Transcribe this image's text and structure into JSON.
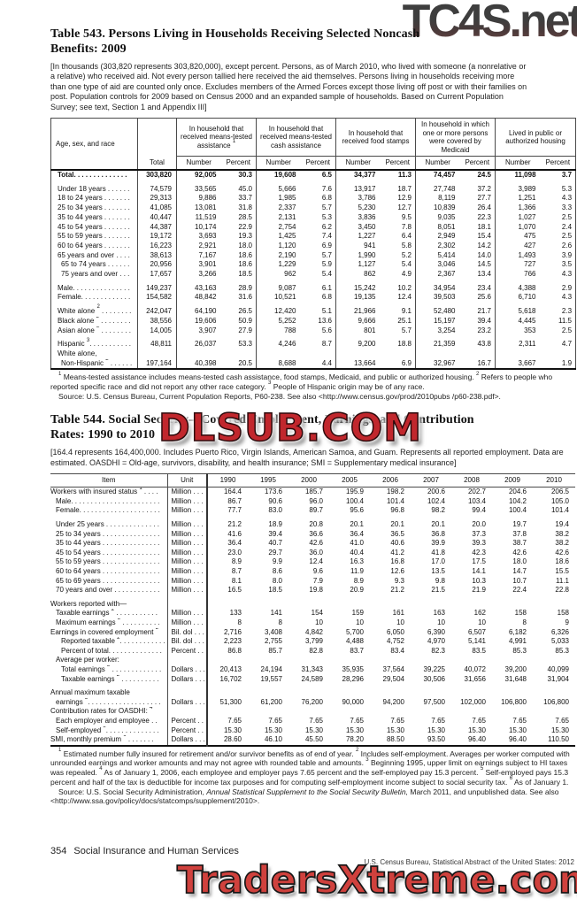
{
  "colors": {
    "watermark_red": "#c1272d",
    "watermark_gray": "#3f3f3f",
    "text": "#1c1c1c"
  },
  "watermarks": {
    "top": "TC4S.net",
    "middle": "DLSUB.COM",
    "bottom": "TradersXtreme.com"
  },
  "table543": {
    "title_line1": "Table 543. Persons Living in Households Receiving Selected Noncash",
    "title_line2": "Benefits: 2009",
    "note": "[In thousands (303,820 represents 303,820,000), except percent. Persons, as of March 2010, who lived with someone (a nonrelative or a relative) who received aid. Not every person tallied here received the aid themselves. Persons living in households receiving more than one type of aid are counted only once. Excludes members of the Armed Forces except those living off post or with their families on post. Population controls for 2009 based on Census 2000 and an expanded sample of households. Based on Current Population Survey; see text, Section 1 and Appendix III]",
    "stub_header": "Age, sex, and race",
    "total_header": "Total",
    "group_headers": [
      "In household that received means-tested assistance ¹",
      "In household that received means-tested cash assistance",
      "In household that received food stamps",
      "In household in which one or more persons were covered by Medicaid",
      "Lived in public or authorized housing"
    ],
    "subheaders": [
      "Number",
      "Percent"
    ],
    "rows": [
      {
        "label": "Total. . . . . . . . . . . . . .",
        "bold": true,
        "values": [
          "303,820",
          "92,005",
          "30.3",
          "19,608",
          "6.5",
          "34,377",
          "11.3",
          "74,457",
          "24.5",
          "11,098",
          "3.7"
        ]
      },
      {
        "label": "Under 18 years . . . . . .",
        "gap": true,
        "values": [
          "74,579",
          "33,565",
          "45.0",
          "5,666",
          "7.6",
          "13,917",
          "18.7",
          "27,748",
          "37.2",
          "3,989",
          "5.3"
        ]
      },
      {
        "label": "18 to 24 years . . . . . . .",
        "values": [
          "29,313",
          "9,886",
          "33.7",
          "1,985",
          "6.8",
          "3,786",
          "12.9",
          "8,119",
          "27.7",
          "1,251",
          "4.3"
        ]
      },
      {
        "label": "25 to 34 years . . . . . . .",
        "values": [
          "41,085",
          "13,081",
          "31.8",
          "2,337",
          "5.7",
          "5,230",
          "12.7",
          "10,839",
          "26.4",
          "1,366",
          "3.3"
        ]
      },
      {
        "label": "35 to 44 years . . . . . . .",
        "values": [
          "40,447",
          "11,519",
          "28.5",
          "2,131",
          "5.3",
          "3,836",
          "9.5",
          "9,035",
          "22.3",
          "1,027",
          "2.5"
        ]
      },
      {
        "label": "45 to 54 years . . . . . . .",
        "values": [
          "44,387",
          "10,174",
          "22.9",
          "2,754",
          "6.2",
          "3,450",
          "7.8",
          "8,051",
          "18.1",
          "1,070",
          "2.4"
        ]
      },
      {
        "label": "55 to 59 years . . . . . . .",
        "values": [
          "19,172",
          "3,693",
          "19.3",
          "1,425",
          "7.4",
          "1,227",
          "6.4",
          "2,949",
          "15.4",
          "475",
          "2.5"
        ]
      },
      {
        "label": "60 to 64 years . . . . . . .",
        "values": [
          "16,223",
          "2,921",
          "18.0",
          "1,120",
          "6.9",
          "941",
          "5.8",
          "2,302",
          "14.2",
          "427",
          "2.6"
        ]
      },
      {
        "label": "65 years and over . . . .",
        "values": [
          "38,613",
          "7,167",
          "18.6",
          "2,190",
          "5.7",
          "1,990",
          "5.2",
          "5,414",
          "14.0",
          "1,493",
          "3.9"
        ]
      },
      {
        "label": "65 to 74 years . . . . . .",
        "indent": 1,
        "values": [
          "20,956",
          "3,901",
          "18.6",
          "1,229",
          "5.9",
          "1,127",
          "5.4",
          "3,046",
          "14.5",
          "727",
          "3.5"
        ]
      },
      {
        "label": "75 years and over . . .",
        "indent": 1,
        "values": [
          "17,657",
          "3,266",
          "18.5",
          "962",
          "5.4",
          "862",
          "4.9",
          "2,367",
          "13.4",
          "766",
          "4.3"
        ]
      },
      {
        "label": "Male. . . . . . . . . . . . . . .",
        "gap": true,
        "values": [
          "149,237",
          "43,163",
          "28.9",
          "9,087",
          "6.1",
          "15,242",
          "10.2",
          "34,954",
          "23.4",
          "4,388",
          "2.9"
        ]
      },
      {
        "label": "Female. . . . . . . . . . . . .",
        "values": [
          "154,582",
          "48,842",
          "31.6",
          "10,521",
          "6.8",
          "19,135",
          "12.4",
          "39,503",
          "25.6",
          "6,710",
          "4.3"
        ]
      },
      {
        "label": "White alone ² . . . . . . . .",
        "gap": true,
        "values": [
          "242,047",
          "64,190",
          "26.5",
          "12,420",
          "5.1",
          "21,966",
          "9.1",
          "52,480",
          "21.7",
          "5,618",
          "2.3"
        ]
      },
      {
        "label": "Black alone ² . . . . . . . .",
        "values": [
          "38,556",
          "19,606",
          "50.9",
          "5,252",
          "13.6",
          "9,666",
          "25.1",
          "15,197",
          "39.4",
          "4,445",
          "11.5"
        ]
      },
      {
        "label": "Asian alone ² . . . . . . . .",
        "values": [
          "14,005",
          "3,907",
          "27.9",
          "788",
          "5.6",
          "801",
          "5.7",
          "3,254",
          "23.2",
          "353",
          "2.5"
        ]
      },
      {
        "label": "Hispanic ³. . . . . . . . . . .",
        "gap": true,
        "values": [
          "48,811",
          "26,037",
          "53.3",
          "4,246",
          "8.7",
          "9,200",
          "18.8",
          "21,359",
          "43.8",
          "2,311",
          "4.7"
        ]
      },
      {
        "label": "White alone,",
        "values": []
      },
      {
        "label": "Non-Hispanic ² . . . . . .",
        "indent": 1,
        "values": [
          "197,164",
          "40,398",
          "20.5",
          "8,688",
          "4.4",
          "13,664",
          "6.9",
          "32,967",
          "16.7",
          "3,667",
          "1.9"
        ]
      }
    ],
    "footnotes": "¹ Means-tested assistance includes means-tested cash assistance, food stamps, Medicaid, and public or authorized housing. ² Refers to people who reported specific race and did not report any other race category. ³ People of Hispanic origin may be of any race.",
    "source": "Source: U.S. Census Bureau, Current Population Reports,  P60-238. See also <http://www.census.gov/prod/2010pubs /p60-238.pdf>."
  },
  "table544": {
    "title_line1": "Table 544. Social Security—Covered Employment, Earnings, and Contribution",
    "title_line2": "Rates: 1990 to 2010",
    "note": "[164.4 represents 164,400,000. Includes Puerto Rico, Virgin Islands, American Samoa, and Guam. Represents all reported employment. Data are estimated. OASDHI = Old-age, survivors, disability, and health insurance; SMI = Supplementary medical insurance]",
    "stub_header": "Item",
    "unit_header": "Unit",
    "year_headers": [
      "1990",
      "1995",
      "2000",
      "2005",
      "2006",
      "2007",
      "2008",
      "2009",
      "2010"
    ],
    "rows": [
      {
        "label": "Workers with insured status ¹ . . . .",
        "unit": "Million . . .",
        "values": [
          "164.4",
          "173.6",
          "185.7",
          "195.9",
          "198.2",
          "200.6",
          "202.7",
          "204.6",
          "206.5"
        ]
      },
      {
        "label": "Male. . . . . . . . . . . . . . . . . . . . . . .",
        "indent": 1,
        "unit": "Million . . .",
        "values": [
          "86.7",
          "90.6",
          "96.0",
          "100.4",
          "101.4",
          "102.4",
          "103.4",
          "104.2",
          "105.0"
        ]
      },
      {
        "label": "Female. . . . . . . . . . . . . . . . . . . . .",
        "indent": 1,
        "unit": "Million . . .",
        "values": [
          "77.7",
          "83.0",
          "89.7",
          "95.6",
          "96.8",
          "98.2",
          "99.4",
          "100.4",
          "101.4"
        ]
      },
      {
        "label": "Under 25 years . . . . . . . . . . . . . .",
        "indent": 1,
        "gap": true,
        "unit": "Million . . .",
        "values": [
          "21.2",
          "18.9",
          "20.8",
          "20.1",
          "20.1",
          "20.1",
          "20.0",
          "19.7",
          "19.4"
        ]
      },
      {
        "label": "25 to 34 years . . . . . . . . . . . . . . .",
        "indent": 1,
        "unit": "Million . . .",
        "values": [
          "41.6",
          "39.4",
          "36.6",
          "36.4",
          "36.5",
          "36.8",
          "37.3",
          "37.8",
          "38.2"
        ]
      },
      {
        "label": "35 to 44 years . . . . . . . . . . . . . . .",
        "indent": 1,
        "unit": "Million . . .",
        "values": [
          "36.4",
          "40.7",
          "42.6",
          "41.0",
          "40.6",
          "39.9",
          "39.3",
          "38.7",
          "38.2"
        ]
      },
      {
        "label": "45 to 54 years . . . . . . . . . . . . . . .",
        "indent": 1,
        "unit": "Million . . .",
        "values": [
          "23.0",
          "29.7",
          "36.0",
          "40.4",
          "41.2",
          "41.8",
          "42.3",
          "42.6",
          "42.6"
        ]
      },
      {
        "label": "55 to 59 years . . . . . . . . . . . . . . .",
        "indent": 1,
        "unit": "Million . . .",
        "values": [
          "8.9",
          "9.9",
          "12.4",
          "16.3",
          "16.8",
          "17.0",
          "17.5",
          "18.0",
          "18.6"
        ]
      },
      {
        "label": "60 to 64 years . . . . . . . . . . . . . . .",
        "indent": 1,
        "unit": "Million . . .",
        "values": [
          "8.7",
          "8.6",
          "9.6",
          "11.9",
          "12.6",
          "13.5",
          "14.1",
          "14.7",
          "15.5"
        ]
      },
      {
        "label": "65 to 69 years . . . . . . . . . . . . . . .",
        "indent": 1,
        "unit": "Million . . .",
        "values": [
          "8.1",
          "8.0",
          "7.9",
          "8.9",
          "9.3",
          "9.8",
          "10.3",
          "10.7",
          "11.1"
        ]
      },
      {
        "label": "70 years and over . . . . . . . . . . . .",
        "indent": 1,
        "unit": "Million . . .",
        "values": [
          "16.5",
          "18.5",
          "19.8",
          "20.9",
          "21.2",
          "21.5",
          "21.9",
          "22.4",
          "22.8"
        ]
      },
      {
        "label": "Workers reported with—",
        "gap": true,
        "unit": "",
        "values": []
      },
      {
        "label": "Taxable earnings ² . . . . . . . . . . .",
        "indent": 1,
        "unit": "Million . . .",
        "values": [
          "133",
          "141",
          "154",
          "159",
          "161",
          "163",
          "162",
          "158",
          "158"
        ]
      },
      {
        "label": "Maximum earnings ² . . . . . . . . . .",
        "indent": 1,
        "unit": "Million . . .",
        "values": [
          "8",
          "8",
          "10",
          "10",
          "10",
          "10",
          "10",
          "8",
          "9"
        ]
      },
      {
        "label": "Earnings in covered employment ²",
        "unit": "Bil. dol . . .",
        "values": [
          "2,716",
          "3,408",
          "4,842",
          "5,700",
          "6,050",
          "6,390",
          "6,507",
          "6,182",
          "6,326"
        ]
      },
      {
        "label": "Reported taxable ². . . . . . . . . . . .",
        "indent": 2,
        "unit": "Bil. dol . . .",
        "values": [
          "2,223",
          "2,755",
          "3,799",
          "4,488",
          "4,752",
          "4,970",
          "5,141",
          "4,991",
          "5,033"
        ]
      },
      {
        "label": "Percent of total. . . . . . . . . . . . . .",
        "indent": 2,
        "unit": "Percent . .",
        "values": [
          "86.8",
          "85.7",
          "82.8",
          "83.7",
          "83.4",
          "82.3",
          "83.5",
          "85.3",
          "85.3"
        ]
      },
      {
        "label": "Average per worker:",
        "indent": 1,
        "unit": "",
        "values": []
      },
      {
        "label": "Total earnings ² . . . . . . . . . . . . .",
        "indent": 2,
        "unit": "Dollars . . .",
        "values": [
          "20,413",
          "24,194",
          "31,343",
          "35,935",
          "37,564",
          "39,225",
          "40,072",
          "39,200",
          "40,099"
        ]
      },
      {
        "label": "Taxable earnings ² . . . . . . . . . .",
        "indent": 2,
        "unit": "Dollars . . .",
        "values": [
          "16,702",
          "19,557",
          "24,589",
          "28,296",
          "29,504",
          "30,506",
          "31,656",
          "31,648",
          "31,904"
        ]
      },
      {
        "label": "Annual maximum taxable",
        "gap": true,
        "unit": "",
        "values": []
      },
      {
        "label": "earnings ³. . . . . . . . . . . . . . . . . . .",
        "indent": 1,
        "unit": "Dollars . . .",
        "values": [
          "51,300",
          "61,200",
          "76,200",
          "90,000",
          "94,200",
          "97,500",
          "102,000",
          "106,800",
          "106,800"
        ]
      },
      {
        "label": "Contribution rates for OASDHI: ⁴",
        "unit": "",
        "values": []
      },
      {
        "label": "Each employer and employee . .",
        "indent": 1,
        "unit": "Percent . .",
        "values": [
          "7.65",
          "7.65",
          "7.65",
          "7.65",
          "7.65",
          "7.65",
          "7.65",
          "7.65",
          "7.65"
        ]
      },
      {
        "label": "Self-employed ⁵. . . . . . . . . . . . . .",
        "indent": 1,
        "unit": "Percent . .",
        "values": [
          "15.30",
          "15.30",
          "15.30",
          "15.30",
          "15.30",
          "15.30",
          "15.30",
          "15.30",
          "15.30"
        ]
      },
      {
        "label": "SMI, monthly premium ⁶ . . . . . . .",
        "unit": "Dollars . . .",
        "values": [
          "28.60",
          "46.10",
          "45.50",
          "78.20",
          "88.50",
          "93.50",
          "96.40",
          "96.40",
          "110.50"
        ]
      }
    ],
    "footnotes": "¹ Estimated number fully insured for retirement and/or survivor benefits as of end of year. ² Includes self-employment. Averages per worker computed with unrounded earnings and worker amounts and may not agree with rounded table and amounts. ³ Beginning 1995, upper limit on earnings subject to HI taxes was repealed. ⁴ As of January 1, 2006, each employee and employer pays 7.65 percent and the self-employed pay 15.3 percent. ⁵ Self-employed pays 15.3 percent and half of the tax is deductible for income tax purposes and for computing self-employment income subject to social security tax. ⁶ As of January 1.",
    "source_prefix": "Source: U.S. Social Security Administration, ",
    "source_italic": "Annual Statistical Supplement to the Social Security Bulletin,",
    "source_suffix": " March 2011, and unpublished data. See also <http://www.ssa.gov/policy/docs/statcomps/supplement/2010>."
  },
  "footer": {
    "page_number": "354",
    "section": "Social Insurance and Human Services",
    "right_note": "U.S. Census Bureau, Statistical Abstract of the United States: 2012"
  }
}
